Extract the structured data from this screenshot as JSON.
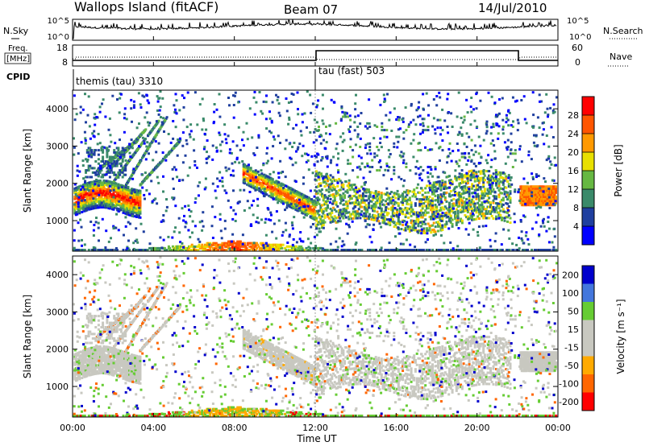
{
  "header": {
    "station": "Wallops Island (fitACF)",
    "beam": "Beam 07",
    "date": "14/Jul/2010"
  },
  "noise_panel": {
    "left_label": "N.Sky",
    "right_label": "N.Search",
    "left_ticks": [
      "10^5",
      "10^0"
    ],
    "right_ticks": [
      "10^5",
      "10^0"
    ]
  },
  "freq_panel": {
    "left_label_line1": "Freq.",
    "left_label_line2": "[MHz]",
    "right_label": "Nave",
    "left_ticks": [
      "18",
      "8"
    ],
    "right_ticks": [
      "60",
      "0"
    ]
  },
  "cpid": {
    "label": "CPID",
    "programs": [
      {
        "name": "themis (tau) 3310",
        "start_hour": 0
      },
      {
        "name": "tau (fast) 503",
        "start_hour": 12
      }
    ]
  },
  "colors": {
    "power_scale": [
      "#0000ff",
      "#1f3f9f",
      "#3a8a6a",
      "#66b842",
      "#e8e000",
      "#ff9900",
      "#ff5500",
      "#ff0000"
    ],
    "velocity_scale": [
      "#ff0000",
      "#ff6600",
      "#ffaa00",
      "#c8c8c0",
      "#c8c8c0",
      "#66cc33",
      "#4477dd",
      "#0000cc"
    ]
  },
  "chart_data": [
    {
      "type": "heatmap",
      "name": "power",
      "ylabel": "Slant Range [km]",
      "yticks": [
        "1000",
        "2000",
        "3000",
        "4000"
      ],
      "ylim": [
        180,
        4500
      ],
      "xlim": [
        0,
        24
      ],
      "colorbar_label": "Power [dB]",
      "colorbar_ticks": [
        "4",
        "8",
        "12",
        "16",
        "20",
        "24",
        "28"
      ],
      "colorbar_range": [
        0,
        32
      ]
    },
    {
      "type": "heatmap",
      "name": "velocity",
      "ylabel": "Slant Range [km]",
      "yticks": [
        "1000",
        "2000",
        "3000",
        "4000"
      ],
      "ylim": [
        180,
        4500
      ],
      "xlim": [
        0,
        24
      ],
      "colorbar_label": "Velocity [m s⁻¹]",
      "colorbar_ticks": [
        "-200",
        "-100",
        "-50",
        "-15",
        "15",
        "50",
        "100",
        "200"
      ]
    }
  ],
  "xaxis": {
    "label": "Time UT",
    "ticks": [
      "00:00",
      "04:00",
      "08:00",
      "12:00",
      "16:00",
      "20:00",
      "00:00"
    ]
  }
}
